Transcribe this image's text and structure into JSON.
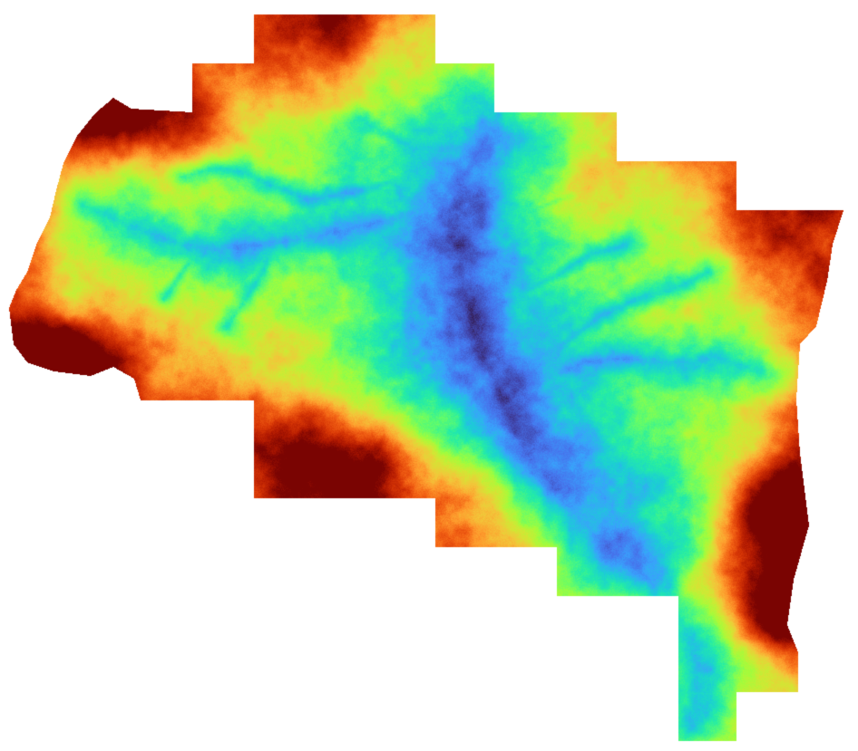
{
  "map": {
    "kind": "elevation-heatmap",
    "colormap": "turbo",
    "colormap_stops": [
      "#30123b",
      "#4145ab",
      "#4675ed",
      "#39a2fc",
      "#1bcfd4",
      "#24eca6",
      "#61fc6c",
      "#a4fc3b",
      "#d1e834",
      "#f3c63a",
      "#fe9b2d",
      "#f36315",
      "#d93806",
      "#b11901",
      "#7a0402"
    ],
    "background": "#ffffff",
    "legend": "none",
    "text_labels": []
  }
}
